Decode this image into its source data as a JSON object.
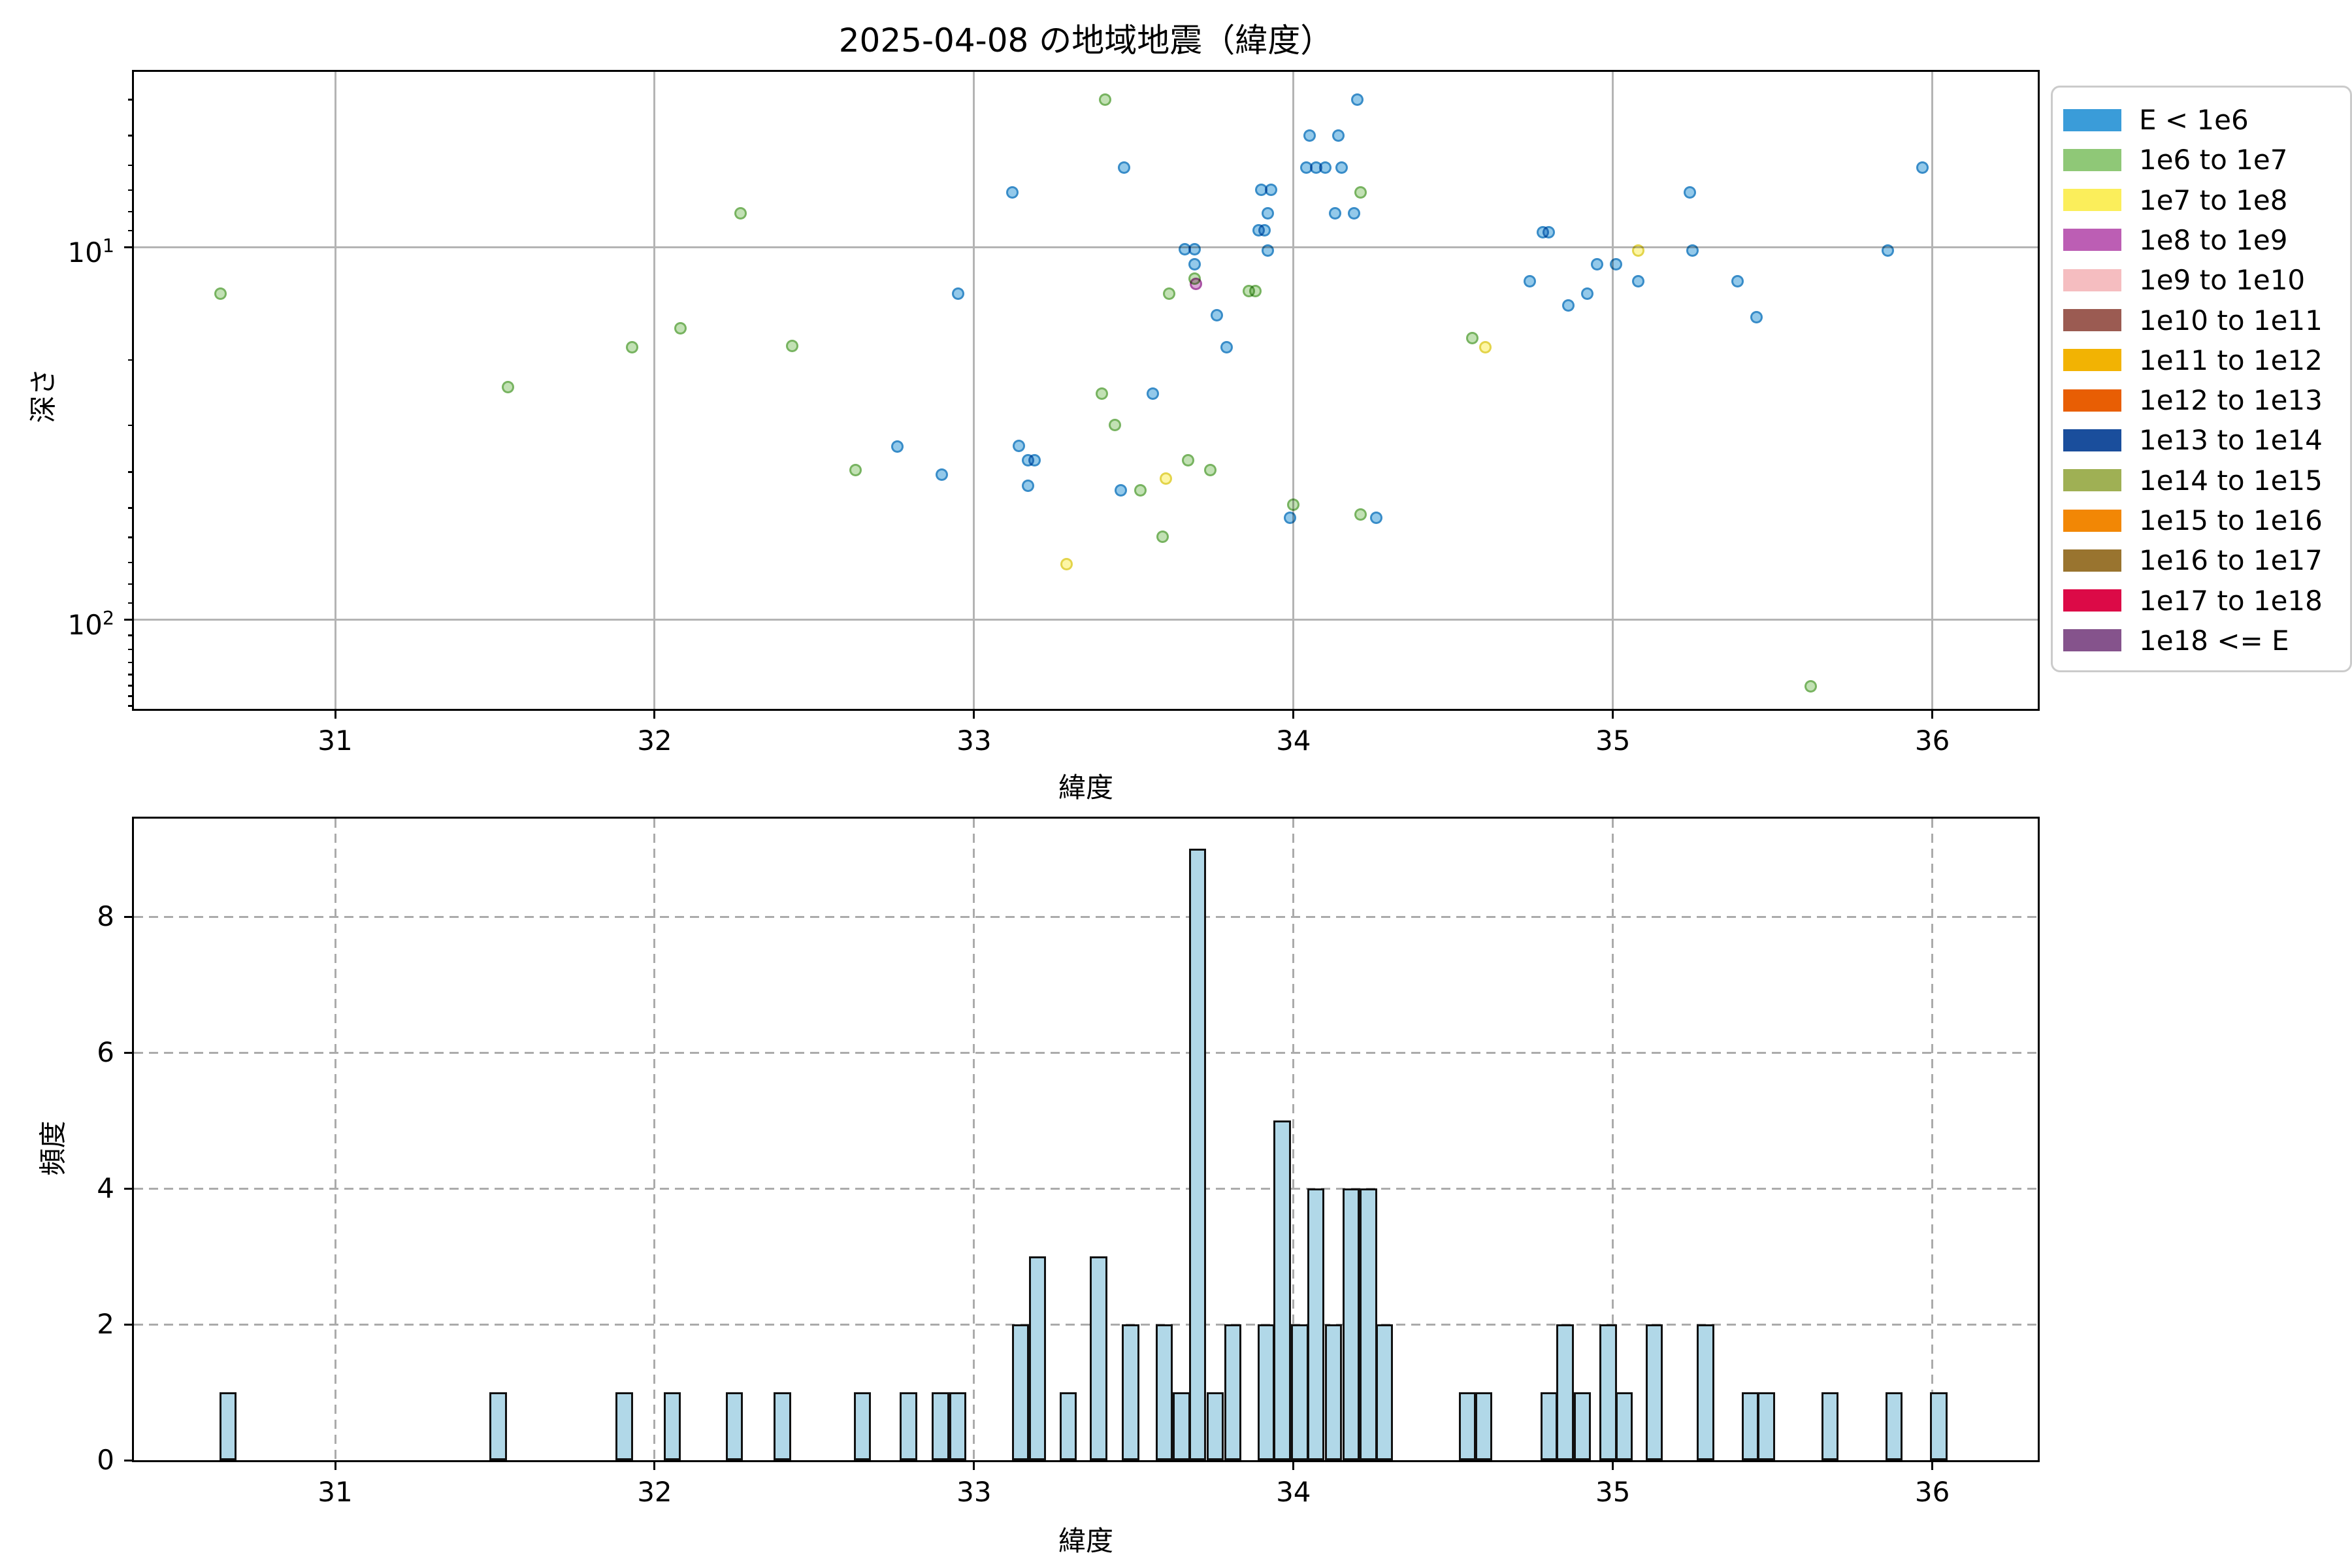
{
  "title": "2025-04-08 の地域地震（緯度）",
  "colors": {
    "background": "#ffffff",
    "axis": "#000000",
    "grid_solid": "#b4b4b4",
    "grid_dashed": "#ababab",
    "hist_fill": "#b1d8e8",
    "hist_edge": "#111111",
    "category_fill": {
      "blue": "#3a9cd9",
      "green": "#8fc877",
      "yellow": "#fbee5b",
      "purple": "#bc5eb4"
    },
    "category_edge": {
      "blue": "#2f86c4",
      "green": "#6fae58",
      "yellow": "#e0d040",
      "purple": "#a4489e"
    }
  },
  "legend": {
    "entries": [
      {
        "label": "E < 1e6",
        "color": "#3a9cd9"
      },
      {
        "label": "1e6 to 1e7",
        "color": "#8fc877"
      },
      {
        "label": "1e7 to 1e8",
        "color": "#fbee5b"
      },
      {
        "label": "1e8 to 1e9",
        "color": "#bc5eb4"
      },
      {
        "label": "1e9 to 1e10",
        "color": "#f5bdc0"
      },
      {
        "label": "1e10 to 1e11",
        "color": "#9b5b52"
      },
      {
        "label": "1e11 to 1e12",
        "color": "#f2b303"
      },
      {
        "label": "1e12 to 1e13",
        "color": "#e85e04"
      },
      {
        "label": "1e13 to 1e14",
        "color": "#1a4e9c"
      },
      {
        "label": "1e14 to 1e15",
        "color": "#9fb054"
      },
      {
        "label": "1e15 to 1e16",
        "color": "#f28705"
      },
      {
        "label": "1e16 to 1e17",
        "color": "#99742f"
      },
      {
        "label": "1e17 to 1e18",
        "color": "#dc0a47"
      },
      {
        "label": "1e18 <= E",
        "color": "#85538c"
      }
    ]
  },
  "scatter_axis": {
    "xlabel": "緯度",
    "ylabel": "深さ",
    "xticks": [
      31,
      32,
      33,
      34,
      35,
      36
    ],
    "ytick_labels": [
      {
        "base": "10",
        "exp": "1",
        "value": 10
      },
      {
        "base": "10",
        "exp": "2",
        "value": 100
      }
    ],
    "y_minor_ticks": [
      4,
      5,
      6,
      7,
      8,
      9,
      20,
      30,
      40,
      50,
      60,
      70,
      80,
      90,
      110,
      120,
      130,
      140,
      150,
      160,
      170
    ]
  },
  "hist_axis": {
    "xlabel": "緯度",
    "ylabel": "頻度",
    "xticks": [
      31,
      32,
      33,
      34,
      35,
      36
    ],
    "yticks": [
      0,
      2,
      4,
      6,
      8
    ]
  },
  "chart_data": [
    {
      "type": "scatter",
      "title": "2025-04-08 の地域地震（緯度）",
      "xlabel": "緯度",
      "ylabel": "深さ",
      "x_range": [
        30.37,
        36.33
      ],
      "xticks": [
        31,
        32,
        33,
        34,
        35,
        36
      ],
      "y_scale": "log10_inverted_depth",
      "y_range": [
        3.4,
        173
      ],
      "yticks": [
        10,
        100
      ],
      "grid": "solid",
      "legend_position": "outside-right",
      "series": [
        {
          "name": "E < 1e6",
          "category": "blue",
          "points": [
            [
              33.47,
              6.1
            ],
            [
              33.12,
              7.1
            ],
            [
              34.2,
              4.0
            ],
            [
              34.05,
              5.0
            ],
            [
              34.14,
              5.0
            ],
            [
              34.04,
              6.1
            ],
            [
              34.07,
              6.1
            ],
            [
              34.1,
              6.1
            ],
            [
              34.15,
              6.1
            ],
            [
              33.9,
              7.0
            ],
            [
              33.93,
              7.0
            ],
            [
              34.13,
              8.1
            ],
            [
              34.19,
              8.1
            ],
            [
              33.92,
              8.1
            ],
            [
              33.89,
              9.0
            ],
            [
              33.91,
              9.0
            ],
            [
              33.92,
              10.2
            ],
            [
              33.66,
              10.1
            ],
            [
              33.69,
              10.1
            ],
            [
              33.69,
              11.1
            ],
            [
              32.95,
              13.3
            ],
            [
              33.76,
              15.2
            ],
            [
              33.79,
              18.5
            ],
            [
              33.56,
              24.7
            ],
            [
              32.76,
              34.3
            ],
            [
              32.9,
              40.8
            ],
            [
              33.14,
              34.1
            ],
            [
              33.17,
              37.3
            ],
            [
              33.19,
              37.3
            ],
            [
              33.17,
              43.7
            ],
            [
              33.46,
              44.8
            ],
            [
              33.99,
              53.2
            ],
            [
              34.26,
              53.2
            ],
            [
              34.78,
              9.1
            ],
            [
              34.8,
              9.1
            ],
            [
              34.74,
              12.3
            ],
            [
              34.86,
              14.3
            ],
            [
              34.92,
              13.3
            ],
            [
              34.95,
              11.1
            ],
            [
              35.01,
              11.1
            ],
            [
              35.08,
              12.3
            ],
            [
              35.25,
              10.2
            ],
            [
              35.24,
              7.1
            ],
            [
              35.39,
              12.3
            ],
            [
              35.45,
              15.4
            ],
            [
              35.97,
              6.1
            ],
            [
              35.86,
              10.2
            ]
          ]
        },
        {
          "name": "1e8 to 1e9",
          "category": "purple",
          "points": [
            [
              33.695,
              12.5
            ]
          ]
        },
        {
          "name": "1e6 to 1e7",
          "category": "green",
          "points": [
            [
              30.64,
              13.3
            ],
            [
              31.54,
              23.7
            ],
            [
              31.93,
              18.5
            ],
            [
              32.08,
              16.5
            ],
            [
              32.27,
              8.1
            ],
            [
              32.43,
              18.4
            ],
            [
              32.63,
              39.6
            ],
            [
              33.41,
              4.0
            ],
            [
              34.21,
              7.1
            ],
            [
              33.61,
              13.3
            ],
            [
              33.86,
              13.1
            ],
            [
              33.88,
              13.1
            ],
            [
              33.4,
              24.7
            ],
            [
              33.44,
              29.9
            ],
            [
              33.52,
              44.8
            ],
            [
              33.67,
              37.3
            ],
            [
              33.74,
              39.6
            ],
            [
              34.0,
              49.1
            ],
            [
              34.21,
              52.2
            ],
            [
              33.59,
              59.8
            ],
            [
              34.56,
              17.5
            ],
            [
              35.62,
              151
            ],
            [
              33.69,
              12.1
            ]
          ]
        },
        {
          "name": "1e7 to 1e8",
          "category": "yellow",
          "points": [
            [
              33.6,
              41.8
            ],
            [
              33.29,
              70.9
            ],
            [
              34.6,
              18.5
            ],
            [
              35.08,
              10.2
            ]
          ]
        }
      ]
    },
    {
      "type": "bar",
      "xlabel": "緯度",
      "ylabel": "頻度",
      "x_range": [
        30.37,
        36.33
      ],
      "xticks": [
        31,
        32,
        33,
        34,
        35,
        36
      ],
      "ylim": [
        0,
        9.4
      ],
      "yticks": [
        0,
        2,
        4,
        6,
        8
      ],
      "grid": "dashed",
      "bin_width": 0.054,
      "bars": [
        {
          "x": 30.665,
          "h": 1
        },
        {
          "x": 31.51,
          "h": 1
        },
        {
          "x": 31.905,
          "h": 1
        },
        {
          "x": 32.055,
          "h": 1
        },
        {
          "x": 32.25,
          "h": 1
        },
        {
          "x": 32.4,
          "h": 1
        },
        {
          "x": 32.65,
          "h": 1
        },
        {
          "x": 32.795,
          "h": 1
        },
        {
          "x": 32.895,
          "h": 1
        },
        {
          "x": 32.949,
          "h": 1
        },
        {
          "x": 33.145,
          "h": 2
        },
        {
          "x": 33.199,
          "h": 3
        },
        {
          "x": 33.295,
          "h": 1
        },
        {
          "x": 33.39,
          "h": 3
        },
        {
          "x": 33.49,
          "h": 2
        },
        {
          "x": 33.595,
          "h": 2
        },
        {
          "x": 33.65,
          "h": 1
        },
        {
          "x": 33.7,
          "h": 9
        },
        {
          "x": 33.755,
          "h": 1
        },
        {
          "x": 33.81,
          "h": 2
        },
        {
          "x": 33.915,
          "h": 2
        },
        {
          "x": 33.965,
          "h": 5
        },
        {
          "x": 34.02,
          "h": 2
        },
        {
          "x": 34.07,
          "h": 4
        },
        {
          "x": 34.125,
          "h": 2
        },
        {
          "x": 34.18,
          "h": 4
        },
        {
          "x": 34.235,
          "h": 4
        },
        {
          "x": 34.285,
          "h": 2
        },
        {
          "x": 34.545,
          "h": 1
        },
        {
          "x": 34.595,
          "h": 1
        },
        {
          "x": 34.8,
          "h": 1
        },
        {
          "x": 34.85,
          "h": 2
        },
        {
          "x": 34.905,
          "h": 1
        },
        {
          "x": 34.985,
          "h": 2
        },
        {
          "x": 35.035,
          "h": 1
        },
        {
          "x": 35.13,
          "h": 2
        },
        {
          "x": 35.29,
          "h": 2
        },
        {
          "x": 35.43,
          "h": 1
        },
        {
          "x": 35.48,
          "h": 1
        },
        {
          "x": 35.68,
          "h": 1
        },
        {
          "x": 35.88,
          "h": 1
        },
        {
          "x": 36.02,
          "h": 1
        }
      ]
    }
  ]
}
